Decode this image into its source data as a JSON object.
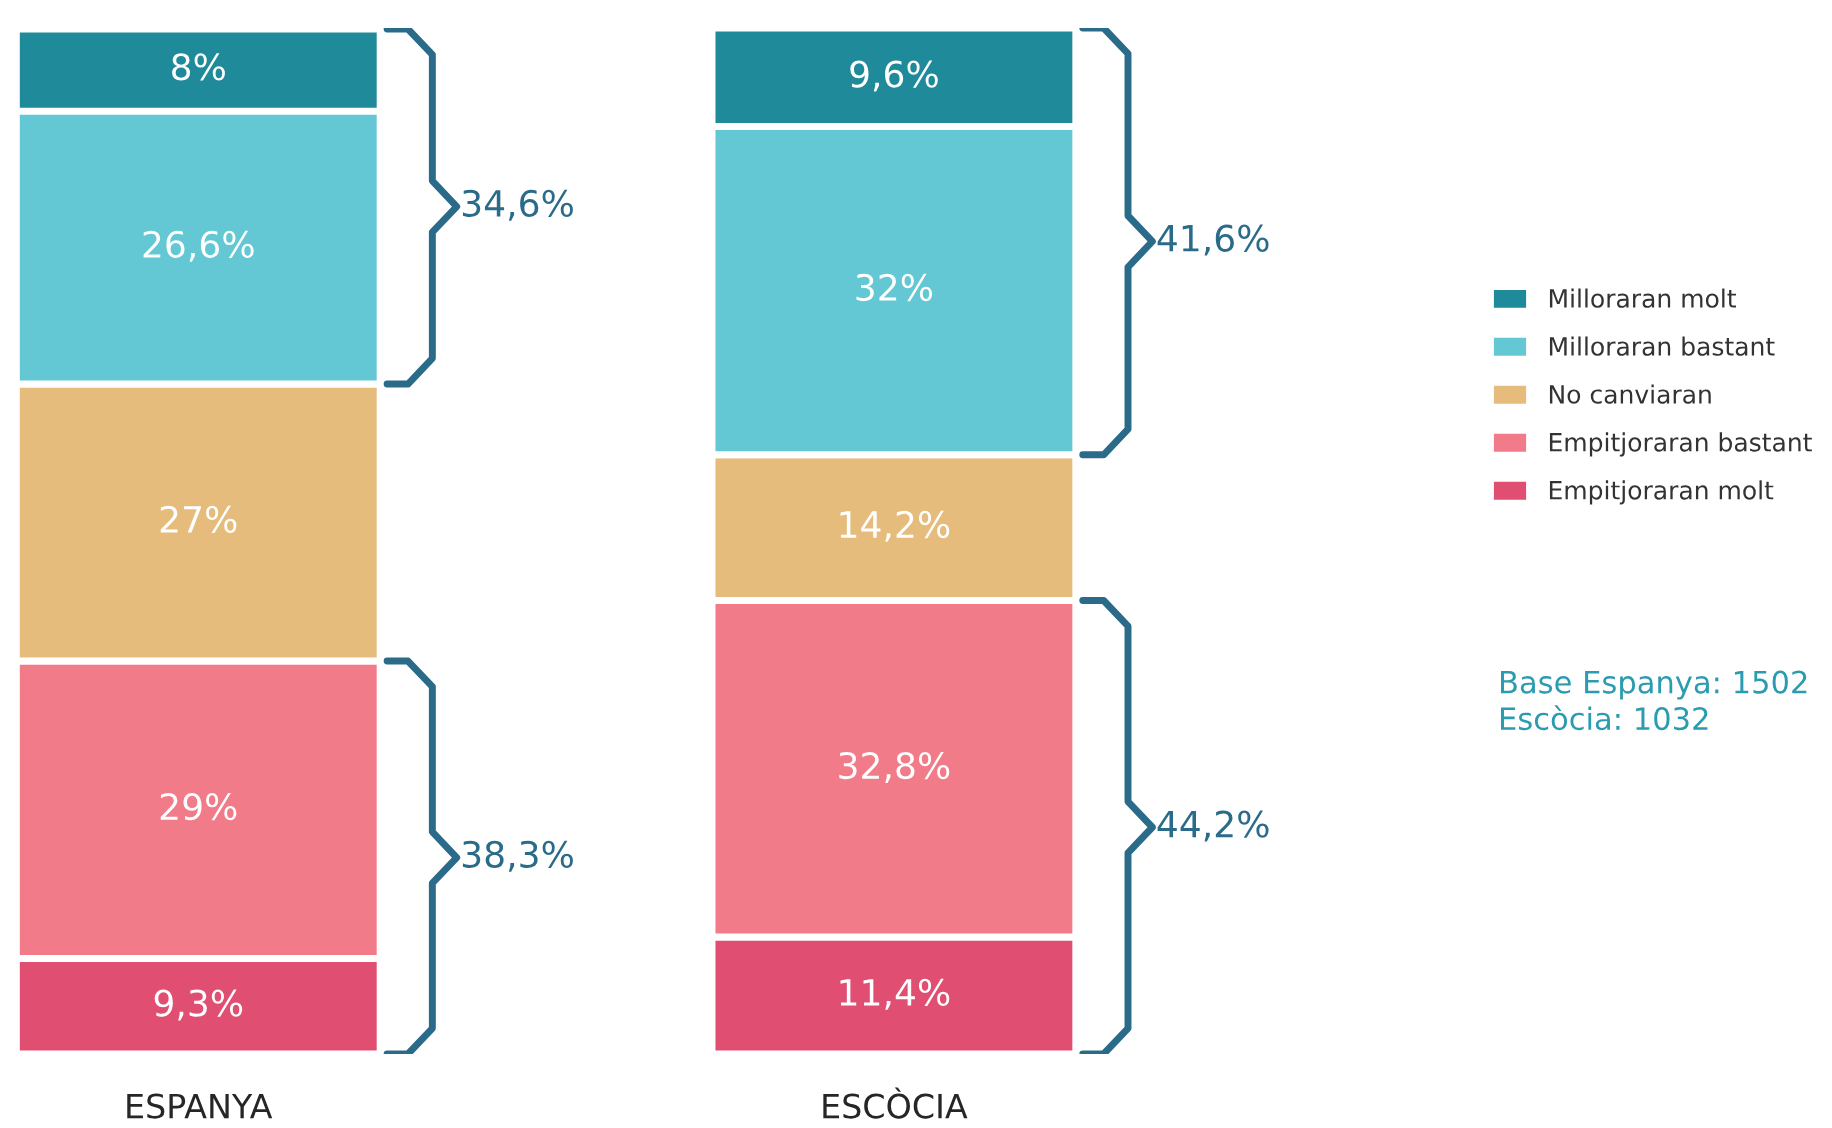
{
  "chart_data": {
    "type": "bar",
    "stacked": true,
    "categories": [
      "ESPANYA",
      "ESCÒCIA"
    ],
    "ylim": [
      0,
      100
    ],
    "tick_labels": "x",
    "legend": "right",
    "series": [
      {
        "name": "Empitjoraran molt",
        "color": "#e04e72",
        "values": [
          9.3,
          11.4
        ],
        "value_labels": [
          "9,3%",
          "11,4%"
        ]
      },
      {
        "name": "Empitjoraran bastant",
        "color": "#f27b89",
        "values": [
          29,
          32.8
        ],
        "value_labels": [
          "29%",
          "32,8%"
        ]
      },
      {
        "name": "No canviaran",
        "color": "#e6bc7d",
        "values": [
          27,
          14.2
        ],
        "value_labels": [
          "27%",
          "14,2%"
        ]
      },
      {
        "name": "Milloraran bastant",
        "color": "#63c8d4",
        "values": [
          26.6,
          32
        ],
        "value_labels": [
          "26,6%",
          "32%"
        ]
      },
      {
        "name": "Milloraran molt",
        "color": "#1f8a99",
        "values": [
          8,
          9.6
        ],
        "value_labels": [
          "8%",
          "9,6%"
        ]
      }
    ],
    "annotations": [
      "34,6%",
      "38,3%",
      "41,6%",
      "44,2%",
      "Base Espanya: 1502\nEscòcia: 1032"
    ]
  }
}
